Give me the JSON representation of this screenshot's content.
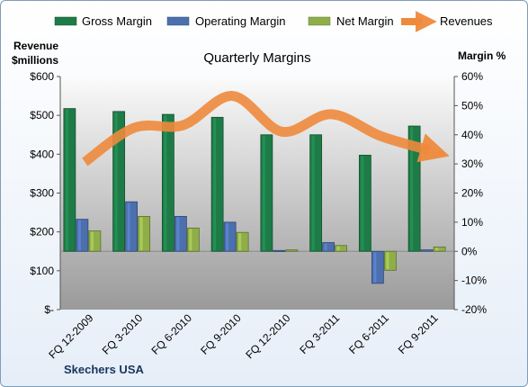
{
  "chart_data": {
    "type": "bar",
    "title": "Quarterly Margins",
    "company": "Skechers USA",
    "categories": [
      "FQ 12-2009",
      "FQ 3-2010",
      "FQ 6-2010",
      "FQ 9-2010",
      "FQ 12-2010",
      "FQ 3-2011",
      "FQ 6-2011",
      "FQ 9-2011"
    ],
    "left_axis": {
      "label": [
        "Revenue",
        "$millions"
      ],
      "ticks": [
        "$-",
        "$100",
        "$200",
        "$300",
        "$400",
        "$500",
        "$600"
      ],
      "range": [
        0,
        600
      ]
    },
    "right_axis": {
      "label": "Margin %",
      "ticks": [
        "-20%",
        "-10%",
        "0%",
        "10%",
        "20%",
        "30%",
        "40%",
        "50%",
        "60%"
      ],
      "range": [
        -20,
        60
      ]
    },
    "series": [
      {
        "name": "Gross Margin",
        "type": "bar",
        "axis": "right",
        "color": "#1e7b47",
        "values": [
          49,
          48,
          47,
          46,
          40,
          40,
          33,
          43
        ]
      },
      {
        "name": "Operating Margin",
        "type": "bar",
        "axis": "right",
        "color": "#4c6fae",
        "values": [
          11,
          17,
          12,
          10,
          0.3,
          3,
          -11,
          0.5
        ]
      },
      {
        "name": "Net Margin",
        "type": "bar",
        "axis": "right",
        "color": "#8fae4a",
        "values": [
          7,
          12,
          8,
          6.5,
          0.5,
          2,
          -6.5,
          1.5
        ]
      },
      {
        "name": "Revenues",
        "type": "line",
        "axis": "left",
        "color": "#ee8a3c",
        "values": [
          380,
          468,
          475,
          550,
          458,
          503,
          447,
          410
        ]
      }
    ],
    "legend_position": "top",
    "grid": false
  }
}
